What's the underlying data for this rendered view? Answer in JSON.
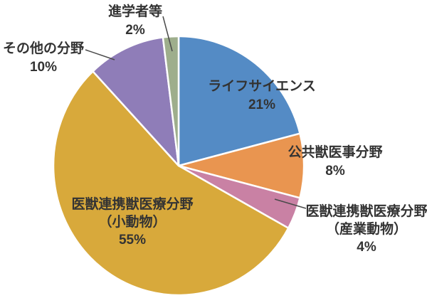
{
  "page": {
    "background_color": "#ffffff",
    "text_color": "#333333",
    "slice_border_color": "#ffffff",
    "leader_line_color": "#4a4a4a"
  },
  "chart_data": {
    "type": "pie",
    "direction": "clockwise",
    "start_angle_deg": 0,
    "legend": "none",
    "slices": [
      {
        "label": "ライフサイエンス",
        "pct_label": "21%",
        "value": 21,
        "color": "#548BC5",
        "label_placement": "inside"
      },
      {
        "label": "公共獣医事分野",
        "pct_label": "8%",
        "value": 8,
        "color": "#E99550",
        "label_placement": "outside-right"
      },
      {
        "label": "医獣連携獣医療分野",
        "sublabel": "（産業動物）",
        "pct_label": "4%",
        "value": 4,
        "color": "#C981A4",
        "label_placement": "outside-right-leader"
      },
      {
        "label": "医獣連携獣医療分野",
        "sublabel": "（小動物）",
        "pct_label": "55%",
        "value": 55,
        "color": "#D8A93B",
        "label_placement": "inside"
      },
      {
        "label": "その他の分野",
        "pct_label": "10%",
        "value": 10,
        "color": "#8F7DB8",
        "label_placement": "outside-left-leader"
      },
      {
        "label": "進学者等",
        "pct_label": "2%",
        "value": 2,
        "color": "#9EAE8C",
        "label_placement": "outside-top-leader"
      }
    ]
  }
}
